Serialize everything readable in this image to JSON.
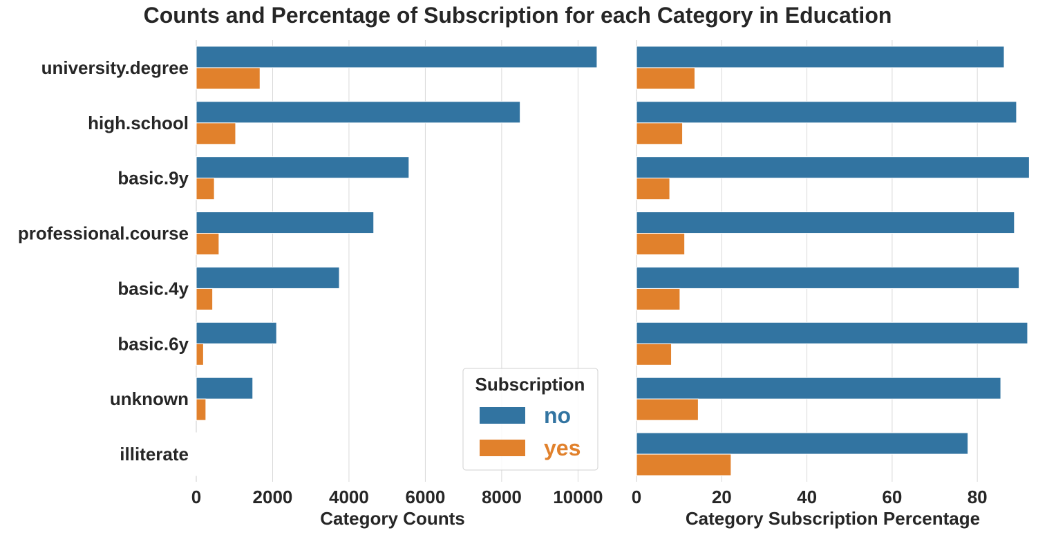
{
  "chart_data": {
    "title": "Counts and Percentage of Subscription for each Category in Education",
    "categories": [
      "university.degree",
      "high.school",
      "basic.9y",
      "professional.course",
      "basic.4y",
      "basic.6y",
      "unknown",
      "illiterate"
    ],
    "colors": {
      "no": "#3274a1",
      "yes": "#e1812c"
    },
    "legend": {
      "title": "Subscription",
      "placement": "lower-right of left panel",
      "entries": [
        {
          "label": "no",
          "color": "#3274a1"
        },
        {
          "label": "yes",
          "color": "#e1812c"
        }
      ]
    },
    "panels": [
      {
        "type": "bar",
        "orientation": "horizontal",
        "xlabel": "Category Counts",
        "xlim": [
          0,
          10500
        ],
        "xticks": [
          0,
          2000,
          4000,
          6000,
          8000,
          10000
        ],
        "grid": "vertical",
        "series": [
          {
            "name": "no",
            "values": [
              10498,
              8484,
              5572,
              4648,
              3748,
              2104,
              1480,
              14
            ]
          },
          {
            "name": "yes",
            "values": [
              1670,
              1031,
              473,
              595,
              428,
              188,
              251,
              4
            ]
          }
        ]
      },
      {
        "type": "bar",
        "orientation": "horizontal",
        "xlabel": "Category Subscription Percentage",
        "xlim": [
          0,
          92.3
        ],
        "xticks": [
          0,
          20,
          40,
          60,
          80
        ],
        "grid": "vertical",
        "series": [
          {
            "name": "no",
            "values": [
              86.3,
              89.2,
              92.2,
              88.7,
              89.8,
              91.8,
              85.5,
              77.8
            ]
          },
          {
            "name": "yes",
            "values": [
              13.7,
              10.8,
              7.8,
              11.3,
              10.2,
              8.2,
              14.5,
              22.2
            ]
          }
        ]
      }
    ]
  }
}
